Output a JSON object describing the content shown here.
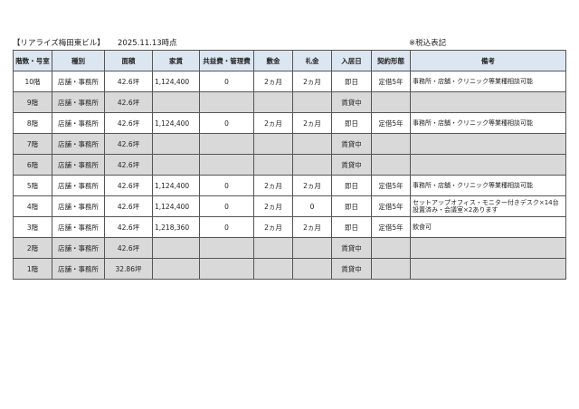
{
  "header": {
    "building": "【リアライズ梅田東ビル】",
    "as_of": "2025.11.13時点",
    "tax_note": "※税込表記"
  },
  "table": {
    "columns": [
      "階数・号室",
      "種別",
      "面積",
      "家賃",
      "共益費・管理費",
      "敷金",
      "礼金",
      "入居日",
      "契約形態",
      "備考"
    ],
    "rows": [
      {
        "floor": "10階",
        "type": "店舗・事務所",
        "area": "42.6坪",
        "rent": "1,124,400",
        "fee": "0",
        "deposit": "2ヵ月",
        "key_money": "2ヵ月",
        "move_in": "即日",
        "contract": "定借5年",
        "note": "事務所・店舗・クリニック等業種相談可能",
        "vacant": false
      },
      {
        "floor": "9階",
        "type": "店舗・事務所",
        "area": "42.6坪",
        "rent": "",
        "fee": "",
        "deposit": "",
        "key_money": "",
        "move_in": "賃貸中",
        "contract": "",
        "note": "",
        "vacant": true
      },
      {
        "floor": "8階",
        "type": "店舗・事務所",
        "area": "42.6坪",
        "rent": "1,124,400",
        "fee": "0",
        "deposit": "2ヵ月",
        "key_money": "2ヵ月",
        "move_in": "即日",
        "contract": "定借5年",
        "note": "事務所・店舗・クリニック等業種相談可能",
        "vacant": false
      },
      {
        "floor": "7階",
        "type": "店舗・事務所",
        "area": "42.6坪",
        "rent": "",
        "fee": "",
        "deposit": "",
        "key_money": "",
        "move_in": "賃貸中",
        "contract": "",
        "note": "",
        "vacant": true
      },
      {
        "floor": "6階",
        "type": "店舗・事務所",
        "area": "42.6坪",
        "rent": "",
        "fee": "",
        "deposit": "",
        "key_money": "",
        "move_in": "賃貸中",
        "contract": "",
        "note": "",
        "vacant": true
      },
      {
        "floor": "5階",
        "type": "店舗・事務所",
        "area": "42.6坪",
        "rent": "1,124,400",
        "fee": "0",
        "deposit": "2ヵ月",
        "key_money": "2ヵ月",
        "move_in": "即日",
        "contract": "定借5年",
        "note": "事務所・店舗・クリニック等業種相談可能",
        "vacant": false
      },
      {
        "floor": "4階",
        "type": "店舗・事務所",
        "area": "42.6坪",
        "rent": "1,124,400",
        "fee": "0",
        "deposit": "2ヵ月",
        "key_money": "0",
        "move_in": "即日",
        "contract": "定借5年",
        "note": "セットアップオフィス・モニター付きデスク×14台設置済み・会議室×2あります",
        "vacant": false
      },
      {
        "floor": "3階",
        "type": "店舗・事務所",
        "area": "42.6坪",
        "rent": "1,218,360",
        "fee": "0",
        "deposit": "2ヵ月",
        "key_money": "2ヵ月",
        "move_in": "即日",
        "contract": "定借5年",
        "note": "飲食可",
        "vacant": false
      },
      {
        "floor": "2階",
        "type": "店舗・事務所",
        "area": "42.6坪",
        "rent": "",
        "fee": "",
        "deposit": "",
        "key_money": "",
        "move_in": "賃貸中",
        "contract": "",
        "note": "",
        "vacant": true
      },
      {
        "floor": "1階",
        "type": "店舗・事務所",
        "area": "32.86坪",
        "rent": "",
        "fee": "",
        "deposit": "",
        "key_money": "",
        "move_in": "賃貸中",
        "contract": "",
        "note": "",
        "vacant": true
      }
    ]
  },
  "colors": {
    "header_bg": "#dce6f1",
    "vacant_row_bg": "#d9d9d9"
  }
}
